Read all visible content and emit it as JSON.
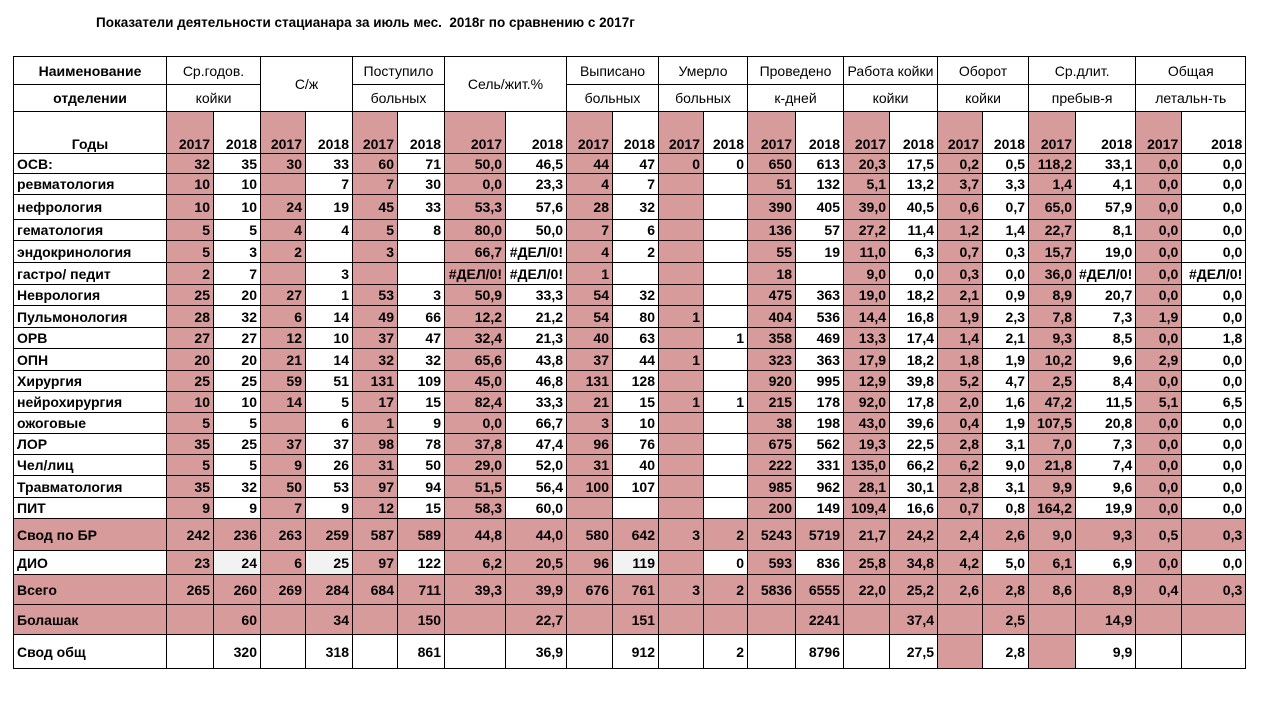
{
  "title": "Показатели деятельности стацианара за июль мес.  2018г по сравнению с 2017г",
  "colors": {
    "highlight": "#d79b9b",
    "border": "#000000"
  },
  "header": {
    "name": [
      "Наименование",
      "отделении"
    ],
    "groups": [
      {
        "l1": "Ср.годов.",
        "l2": "койки"
      },
      {
        "l1": "С/ж",
        "l2": ""
      },
      {
        "l1": "Поступило",
        "l2": "больных"
      },
      {
        "l1": "Сель/жит.%",
        "l2": ""
      },
      {
        "l1": "Выписано",
        "l2": "больных"
      },
      {
        "l1": "Умерло",
        "l2": "больных"
      },
      {
        "l1": "Проведено",
        "l2": "к-дней"
      },
      {
        "l1": "Работа койки",
        "l2": "койки"
      },
      {
        "l1": "Оборот",
        "l2": "койки"
      },
      {
        "l1": "Ср.длит.",
        "l2": "пребыв-я"
      },
      {
        "l1": "Общая",
        "l2": "летальн-ть"
      }
    ],
    "years_label": "Годы",
    "y2017": "2017",
    "y2018": "2018"
  },
  "rows": [
    {
      "name": "ОСВ:",
      "v": [
        "32",
        "35",
        "30",
        "33",
        "60",
        "71",
        "50,0",
        "46,5",
        "44",
        "47",
        "0",
        "0",
        "650",
        "613",
        "20,3",
        "17,5",
        "0,2",
        "0,5",
        "118,2",
        "33,1",
        "0,0",
        "0,0"
      ]
    },
    {
      "name": " ревматология",
      "v": [
        "10",
        "10",
        "",
        "7",
        "7",
        "30",
        "0,0",
        "23,3",
        "4",
        "7",
        "",
        "",
        "51",
        "132",
        "5,1",
        "13,2",
        "3,7",
        "3,3",
        "1,4",
        "4,1",
        "0,0",
        "0,0"
      ]
    },
    {
      "name": "нефрология",
      "v": [
        "10",
        "10",
        "24",
        "19",
        "45",
        "33",
        "53,3",
        "57,6",
        "28",
        "32",
        "",
        "",
        "390",
        "405",
        "39,0",
        "40,5",
        "0,6",
        "0,7",
        "65,0",
        "57,9",
        "0,0",
        "0,0"
      ]
    },
    {
      "name": "гематология",
      "v": [
        "5",
        "5",
        "4",
        "4",
        "5",
        "8",
        "80,0",
        "50,0",
        "7",
        "6",
        "",
        "",
        "136",
        "57",
        "27,2",
        "11,4",
        "1,2",
        "1,4",
        "22,7",
        "8,1",
        "0,0",
        "0,0"
      ]
    },
    {
      "name": "эндокринология",
      "v": [
        "5",
        "3",
        "2",
        "",
        "3",
        "",
        "66,7",
        "#ДЕЛ/0!",
        "4",
        "2",
        "",
        "",
        "55",
        "19",
        "11,0",
        "6,3",
        "0,7",
        "0,3",
        "15,7",
        "19,0",
        "0,0",
        "0,0"
      ]
    },
    {
      "name": "гастро/ педит",
      "v": [
        "2",
        "7",
        "",
        "3",
        "",
        "",
        "#ДЕЛ/0!",
        "#ДЕЛ/0!",
        "1",
        "",
        "",
        "",
        "18",
        "",
        "9,0",
        "0,0",
        "0,3",
        "0,0",
        "36,0",
        "#ДЕЛ/0!",
        "0,0",
        "#ДЕЛ/0!"
      ]
    },
    {
      "name": "Неврология",
      "v": [
        "25",
        "20",
        "27",
        "1",
        "53",
        "3",
        "50,9",
        "33,3",
        "54",
        "32",
        "",
        "",
        "475",
        "363",
        "19,0",
        "18,2",
        "2,1",
        "0,9",
        "8,9",
        "20,7",
        "0,0",
        "0,0"
      ]
    },
    {
      "name": "Пульмонология",
      "v": [
        "28",
        "32",
        "6",
        "14",
        "49",
        "66",
        "12,2",
        "21,2",
        "54",
        "80",
        "1",
        "",
        "404",
        "536",
        "14,4",
        "16,8",
        "1,9",
        "2,3",
        "7,8",
        "7,3",
        "1,9",
        "0,0"
      ]
    },
    {
      "name": "ОРВ",
      "v": [
        "27",
        "27",
        "12",
        "10",
        "37",
        "47",
        "32,4",
        "21,3",
        "40",
        "63",
        "",
        "1",
        "358",
        "469",
        "13,3",
        "17,4",
        "1,4",
        "2,1",
        "9,3",
        "8,5",
        "0,0",
        "1,8"
      ]
    },
    {
      "name": "ОПН",
      "v": [
        "20",
        "20",
        "21",
        "14",
        "32",
        "32",
        "65,6",
        "43,8",
        "37",
        "44",
        "1",
        "",
        "323",
        "363",
        "17,9",
        "18,2",
        "1,8",
        "1,9",
        "10,2",
        "9,6",
        "2,9",
        "0,0"
      ]
    },
    {
      "name": "Хирургия",
      "v": [
        "25",
        "25",
        "59",
        "51",
        "131",
        "109",
        "45,0",
        "46,8",
        "131",
        "128",
        "",
        "",
        "920",
        "995",
        "12,9",
        "39,8",
        "5,2",
        "4,7",
        "2,5",
        "8,4",
        "0,0",
        "0,0"
      ]
    },
    {
      "name": "нейрохирургия",
      "v": [
        "10",
        "10",
        "14",
        "5",
        "17",
        "15",
        "82,4",
        "33,3",
        "21",
        "15",
        "1",
        "1",
        "215",
        "178",
        "92,0",
        "17,8",
        "2,0",
        "1,6",
        "47,2",
        "11,5",
        "5,1",
        "6,5"
      ]
    },
    {
      "name": "ожоговые",
      "v": [
        "5",
        "5",
        "",
        "6",
        "1",
        "9",
        "0,0",
        "66,7",
        "3",
        "10",
        "",
        "",
        "38",
        "198",
        "43,0",
        "39,6",
        "0,4",
        "1,9",
        "107,5",
        "20,8",
        "0,0",
        "0,0"
      ]
    },
    {
      "name": "ЛОР",
      "v": [
        "35",
        "25",
        "37",
        "37",
        "98",
        "78",
        "37,8",
        "47,4",
        "96",
        "76",
        "",
        "",
        "675",
        "562",
        "19,3",
        "22,5",
        "2,8",
        "3,1",
        "7,0",
        "7,3",
        "0,0",
        "0,0"
      ]
    },
    {
      "name": "Чел/лиц",
      "v": [
        "5",
        "5",
        "9",
        "26",
        "31",
        "50",
        "29,0",
        "52,0",
        "31",
        "40",
        "",
        "",
        "222",
        "331",
        "135,0",
        "66,2",
        "6,2",
        "9,0",
        "21,8",
        "7,4",
        "0,0",
        "0,0"
      ]
    },
    {
      "name": "Травматология",
      "v": [
        "35",
        "32",
        "50",
        "53",
        "97",
        "94",
        "51,5",
        "56,4",
        "100",
        "107",
        "",
        "",
        "985",
        "962",
        "28,1",
        "30,1",
        "2,8",
        "3,1",
        "9,9",
        "9,6",
        "0,0",
        "0,0"
      ]
    },
    {
      "name": "ПИТ",
      "v": [
        "9",
        "9",
        "7",
        "9",
        "12",
        "15",
        "58,3",
        "60,0",
        "",
        "",
        "",
        "",
        "200",
        "149",
        "109,4",
        "16,6",
        "0,7",
        "0,8",
        "164,2",
        "19,9",
        "0,0",
        "0,0"
      ]
    }
  ],
  "svod_br": {
    "name": "Свод по БР",
    "v": [
      "242",
      "236",
      "263",
      "259",
      "587",
      "589",
      "44,8",
      "44,0",
      "580",
      "642",
      "3",
      "2",
      "5243",
      "5719",
      "21,7",
      "24,2",
      "2,4",
      "2,6",
      "9,0",
      "9,3",
      "0,5",
      "0,3"
    ]
  },
  "dio": {
    "name": "ДИО",
    "v": [
      "23",
      "24",
      "6",
      "25",
      "97",
      "122",
      "6,2",
      "20,5",
      "96",
      "119",
      "",
      "0",
      "593",
      "836",
      "25,8",
      "34,8",
      "4,2",
      "5,0",
      "6,1",
      "6,9",
      "0,0",
      "0,0"
    ]
  },
  "vsego": {
    "name": "Всего",
    "v": [
      "265",
      "260",
      "269",
      "284",
      "684",
      "711",
      "39,3",
      "39,9",
      "676",
      "761",
      "3",
      "2",
      "5836",
      "6555",
      "22,0",
      "25,2",
      "2,6",
      "2,8",
      "8,6",
      "8,9",
      "0,4",
      "0,3"
    ]
  },
  "bolashak": {
    "name": "Болашак",
    "v": [
      "",
      "60",
      "",
      "34",
      "",
      "150",
      "",
      "22,7",
      "",
      "151",
      "",
      "",
      "",
      "2241",
      "",
      "37,4",
      "",
      "2,5",
      "",
      "14,9",
      "",
      ""
    ]
  },
  "svod_obsh": {
    "name": "Свод общ",
    "v": [
      "",
      "320",
      "",
      "318",
      "",
      "861",
      "",
      "36,9",
      "",
      "912",
      "",
      "2",
      "",
      "8796",
      "",
      "27,5",
      "",
      "2,8",
      "",
      "9,9",
      "",
      ""
    ]
  }
}
